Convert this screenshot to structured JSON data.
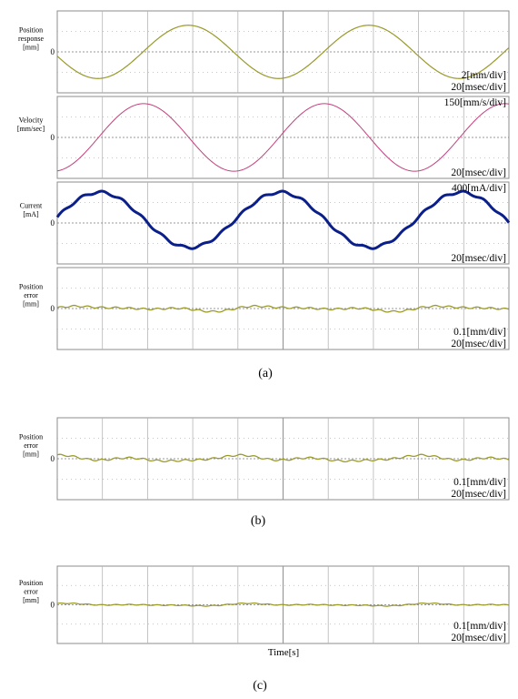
{
  "caption_a": "(a)",
  "caption_b": "(b)",
  "caption_c": "(c)",
  "x_axis_label": "Time[s]",
  "colors": {
    "position": "#9a9a2a",
    "velocity": "#c2407e",
    "current": "#0b1f8a",
    "error": "#9a9a2a",
    "grid": "#b5b5b5",
    "frame": "#8c8c8c"
  },
  "chart_data": [
    {
      "id": "a-position",
      "type": "line",
      "ylabel_lines": [
        "Position",
        "response",
        "[mm]"
      ],
      "zero_label": "0",
      "scale_labels": [
        "2[mm/div]",
        "20[msec/div]"
      ],
      "x_divisions": 10,
      "y_divisions": 4,
      "series": [
        {
          "shape": "sine",
          "amplitude_div": 1.3,
          "period_div": 4.0,
          "phase": 3.3,
          "offset_div": 0.0,
          "ripple_div": 0.0
        }
      ]
    },
    {
      "id": "a-velocity",
      "type": "line",
      "ylabel_lines": [
        "Velocity",
        "[mm/sec]"
      ],
      "zero_label": "0",
      "scale_labels": [
        "150[mm/s/div]",
        "20[msec/div]"
      ],
      "x_divisions": 10,
      "y_divisions": 4,
      "series": [
        {
          "shape": "sine",
          "amplitude_div": 1.65,
          "period_div": 4.0,
          "phase": 4.85,
          "offset_div": 0.0,
          "ripple_div": 0.0
        }
      ]
    },
    {
      "id": "a-current",
      "type": "line",
      "ylabel_lines": [
        "Current",
        "[mA]"
      ],
      "zero_label": "0",
      "scale_labels": [
        "400[mA/div]",
        "20[msec/div]"
      ],
      "x_divisions": 10,
      "y_divisions": 4,
      "series": [
        {
          "shape": "sine",
          "amplitude_div": 1.35,
          "period_div": 4.0,
          "phase": 0.1,
          "offset_div": 0.15,
          "ripple_div": 0.06
        }
      ]
    },
    {
      "id": "a-error",
      "type": "line",
      "ylabel_lines": [
        "Position",
        "error",
        "[mm]"
      ],
      "zero_label": "0",
      "scale_labels": [
        "0.1[mm/div]",
        "20[msec/div]"
      ],
      "x_divisions": 10,
      "y_divisions": 4,
      "series": [
        {
          "shape": "ripple",
          "amplitude_div": 0.12,
          "period_div": 4.0,
          "phase": 0.0,
          "offset_div": 0.0,
          "ripple_div": 0.04
        }
      ]
    },
    {
      "id": "b-error",
      "type": "line",
      "ylabel_lines": [
        "Position",
        "error",
        "[mm]"
      ],
      "zero_label": "0",
      "scale_labels": [
        "0.1[mm/div]",
        "20[msec/div]"
      ],
      "x_divisions": 10,
      "y_divisions": 4,
      "series": [
        {
          "shape": "ripple",
          "amplitude_div": 0.14,
          "period_div": 4.0,
          "phase": 1.2,
          "offset_div": 0.0,
          "ripple_div": 0.04
        }
      ]
    },
    {
      "id": "c-error",
      "type": "line",
      "ylabel_lines": [
        "Position",
        "error",
        "[mm]"
      ],
      "zero_label": "0",
      "scale_labels": [
        "0.1[mm/div]",
        "20[msec/div]"
      ],
      "x_divisions": 10,
      "y_divisions": 4,
      "series": [
        {
          "shape": "ripple",
          "amplitude_div": 0.06,
          "period_div": 4.0,
          "phase": 0.6,
          "offset_div": 0.0,
          "ripple_div": 0.02
        }
      ]
    }
  ]
}
